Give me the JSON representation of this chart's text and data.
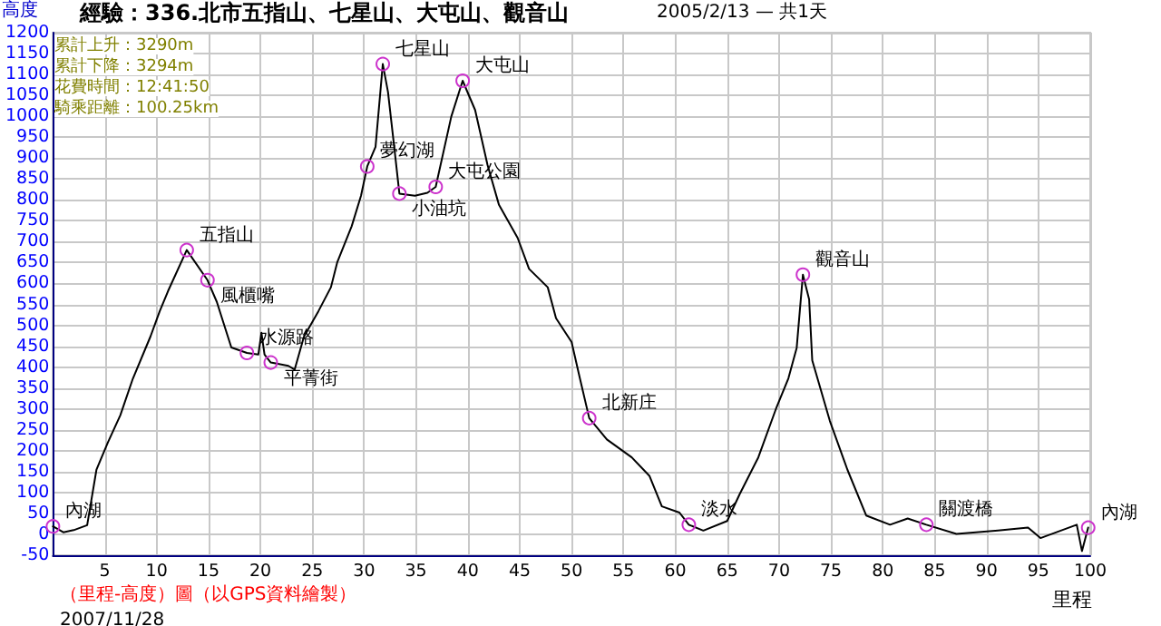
{
  "chart_data": {
    "type": "line",
    "title": "經驗：336.北市五指山、七星山、大屯山、觀音山",
    "subtitle": "2005/2/13 — 共1天",
    "xlabel": "里程",
    "ylabel": "高度",
    "annotations": [
      "累計上升：3290m",
      "累計下降：3294m",
      "花費時間：12:41:50",
      "騎乘距離：100.25km",
      "（里程-高度）圖（以GPS資料繪製）",
      "2007/11/28",
      {
        "text": "內湖",
        "x": 0,
        "y": 19
      },
      {
        "text": "五指山",
        "x": 12.9,
        "y": 680
      },
      {
        "text": "風櫃嘴",
        "x": 14.9,
        "y": 608
      },
      {
        "text": "水源路",
        "x": 18.7,
        "y": 434
      },
      {
        "text": "平菁街",
        "x": 21,
        "y": 411
      },
      {
        "text": "夢幻湖",
        "x": 30.3,
        "y": 880
      },
      {
        "text": "七星山",
        "x": 31.8,
        "y": 1125
      },
      {
        "text": "小油坑",
        "x": 33.4,
        "y": 815
      },
      {
        "text": "大屯公園",
        "x": 36.9,
        "y": 831
      },
      {
        "text": "大屯山",
        "x": 39.5,
        "y": 1085
      },
      {
        "text": "北新庄",
        "x": 51.7,
        "y": 278
      },
      {
        "text": "淡水",
        "x": 61.3,
        "y": 23
      },
      {
        "text": "觀音山",
        "x": 72.3,
        "y": 621
      },
      {
        "text": "關渡橋",
        "x": 84.2,
        "y": 23
      },
      {
        "text": "內湖",
        "x": 99.8,
        "y": 16
      }
    ],
    "x": [
      0,
      1,
      2,
      3.3,
      4.2,
      5.3,
      6.5,
      7.7,
      9.4,
      10.3,
      11.1,
      12.9,
      14.9,
      15.8,
      16.3,
      17.2,
      18.7,
      19.8,
      20.1,
      20.4,
      21,
      22.7,
      23.3,
      24.2,
      25.6,
      26.8,
      27.4,
      28.8,
      29.7,
      30.3,
      31.1,
      31.8,
      32.3,
      32.9,
      33.4,
      34.9,
      36.1,
      36.9,
      38.4,
      39.5,
      40.7,
      41.9,
      43,
      44.8,
      45.9,
      47.7,
      48.5,
      50,
      50.8,
      51.7,
      53.4,
      55.8,
      57.5,
      58.7,
      60.4,
      61.3,
      62.7,
      65,
      66.2,
      68,
      69.7,
      70.9,
      71.7,
      72,
      72.3,
      72.9,
      73.2,
      74.9,
      76.6,
      78.4,
      80.7,
      82.4,
      84.2,
      87.1,
      91.1,
      94,
      95.2,
      98.7,
      99.2,
      99.8
    ],
    "series": [
      {
        "color": "#000000",
        "values": [
          19,
          5,
          10,
          22,
          155,
          220,
          285,
          372,
          473,
          534,
          582,
          680,
          608,
          556,
          517,
          447,
          434,
          430,
          482,
          430,
          411,
          403,
          394,
          473,
          534,
          591,
          650,
          737,
          810,
          880,
          927,
          1125,
          1058,
          927,
          815,
          810,
          817,
          831,
          999,
          1085,
          1015,
          883,
          788,
          709,
          635,
          591,
          517,
          460,
          373,
          278,
          227,
          184,
          140,
          67,
          52,
          23,
          9,
          32,
          96,
          184,
          300,
          373,
          446,
          534,
          621,
          562,
          416,
          271,
          154,
          45,
          23,
          38,
          23,
          1,
          9,
          16,
          -9,
          23,
          -40,
          16
        ]
      }
    ],
    "xlim": [
      0,
      100
    ],
    "xticks": [
      5,
      10,
      15,
      20,
      25,
      30,
      35,
      40,
      45,
      50,
      55,
      60,
      65,
      70,
      75,
      80,
      85,
      90,
      95,
      100
    ],
    "ylim": [
      -50,
      1200
    ],
    "yticks": [
      -50,
      0,
      50,
      100,
      150,
      200,
      250,
      300,
      350,
      400,
      450,
      500,
      550,
      600,
      650,
      700,
      750,
      800,
      850,
      900,
      950,
      1000,
      1050,
      1100,
      1150,
      1200
    ],
    "grid": true,
    "marker": "none",
    "line_style": "solid"
  }
}
